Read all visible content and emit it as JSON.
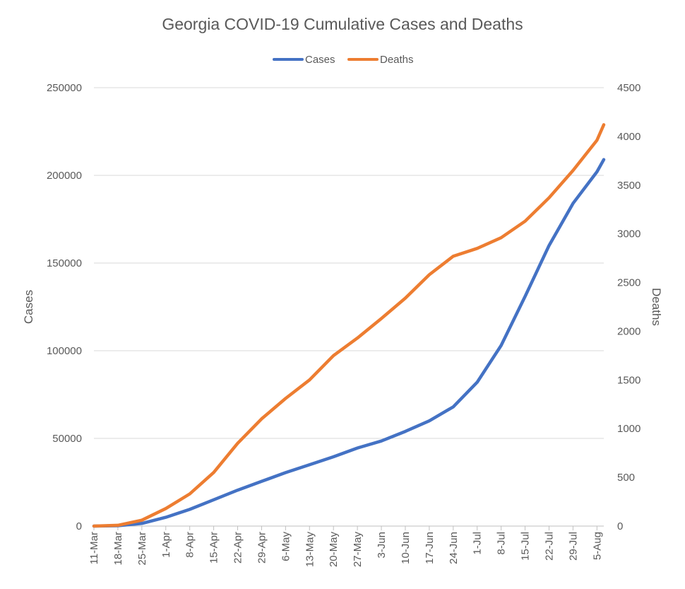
{
  "chart_data": {
    "type": "line",
    "title": "Georgia COVID-19 Cumulative Cases and Deaths",
    "xlabel": "",
    "ylabel": "Cases",
    "y2label": "Deaths",
    "ylim": [
      0,
      250000
    ],
    "y2lim": [
      0,
      4500
    ],
    "yticks": [
      "0",
      "50000",
      "100000",
      "150000",
      "200000",
      "250000"
    ],
    "y2ticks": [
      "0",
      "500",
      "1000",
      "1500",
      "2000",
      "2500",
      "3000",
      "3500",
      "4000",
      "4500"
    ],
    "grid": "horizontal",
    "legend_position": "top",
    "x_tick_labels": [
      "11-Mar",
      "18-Mar",
      "25-Mar",
      "1-Apr",
      "8-Apr",
      "15-Apr",
      "22-Apr",
      "29-Apr",
      "6-May",
      "13-May",
      "20-May",
      "27-May",
      "3-Jun",
      "10-Jun",
      "17-Jun",
      "24-Jun",
      "1-Jul",
      "8-Jul",
      "15-Jul",
      "22-Jul",
      "29-Jul",
      "5-Aug"
    ],
    "x_tick_dates": [
      "2020-03-11",
      "2020-03-18",
      "2020-03-25",
      "2020-04-01",
      "2020-04-08",
      "2020-04-15",
      "2020-04-22",
      "2020-04-29",
      "2020-05-06",
      "2020-05-13",
      "2020-05-20",
      "2020-05-27",
      "2020-06-03",
      "2020-06-10",
      "2020-06-17",
      "2020-06-24",
      "2020-07-01",
      "2020-07-08",
      "2020-07-15",
      "2020-07-22",
      "2020-07-29",
      "2020-08-05"
    ],
    "x_range": [
      "2020-03-11",
      "2020-08-07"
    ],
    "series": [
      {
        "name": "Cases",
        "axis": "left",
        "color": "#4472C4",
        "points": [
          [
            "2020-03-11",
            0
          ],
          [
            "2020-03-18",
            200
          ],
          [
            "2020-03-25",
            1500
          ],
          [
            "2020-04-01",
            5000
          ],
          [
            "2020-04-08",
            9500
          ],
          [
            "2020-04-15",
            15000
          ],
          [
            "2020-04-22",
            20500
          ],
          [
            "2020-04-29",
            25500
          ],
          [
            "2020-05-06",
            30500
          ],
          [
            "2020-05-13",
            35000
          ],
          [
            "2020-05-20",
            39500
          ],
          [
            "2020-05-27",
            44500
          ],
          [
            "2020-06-03",
            48500
          ],
          [
            "2020-06-10",
            54000
          ],
          [
            "2020-06-17",
            60000
          ],
          [
            "2020-06-24",
            68000
          ],
          [
            "2020-07-01",
            82000
          ],
          [
            "2020-07-08",
            103000
          ],
          [
            "2020-07-15",
            131000
          ],
          [
            "2020-07-22",
            160000
          ],
          [
            "2020-07-29",
            184000
          ],
          [
            "2020-08-05",
            202000
          ],
          [
            "2020-08-07",
            209000
          ]
        ]
      },
      {
        "name": "Deaths",
        "axis": "right",
        "color": "#ED7D31",
        "points": [
          [
            "2020-03-11",
            0
          ],
          [
            "2020-03-18",
            8
          ],
          [
            "2020-03-25",
            60
          ],
          [
            "2020-04-01",
            180
          ],
          [
            "2020-04-08",
            330
          ],
          [
            "2020-04-15",
            550
          ],
          [
            "2020-04-22",
            850
          ],
          [
            "2020-04-29",
            1100
          ],
          [
            "2020-05-06",
            1310
          ],
          [
            "2020-05-13",
            1500
          ],
          [
            "2020-05-20",
            1750
          ],
          [
            "2020-05-27",
            1930
          ],
          [
            "2020-06-03",
            2130
          ],
          [
            "2020-06-10",
            2340
          ],
          [
            "2020-06-17",
            2580
          ],
          [
            "2020-06-24",
            2770
          ],
          [
            "2020-07-01",
            2850
          ],
          [
            "2020-07-08",
            2960
          ],
          [
            "2020-07-15",
            3130
          ],
          [
            "2020-07-22",
            3370
          ],
          [
            "2020-07-29",
            3650
          ],
          [
            "2020-08-05",
            3960
          ],
          [
            "2020-08-07",
            4120
          ]
        ]
      }
    ]
  }
}
